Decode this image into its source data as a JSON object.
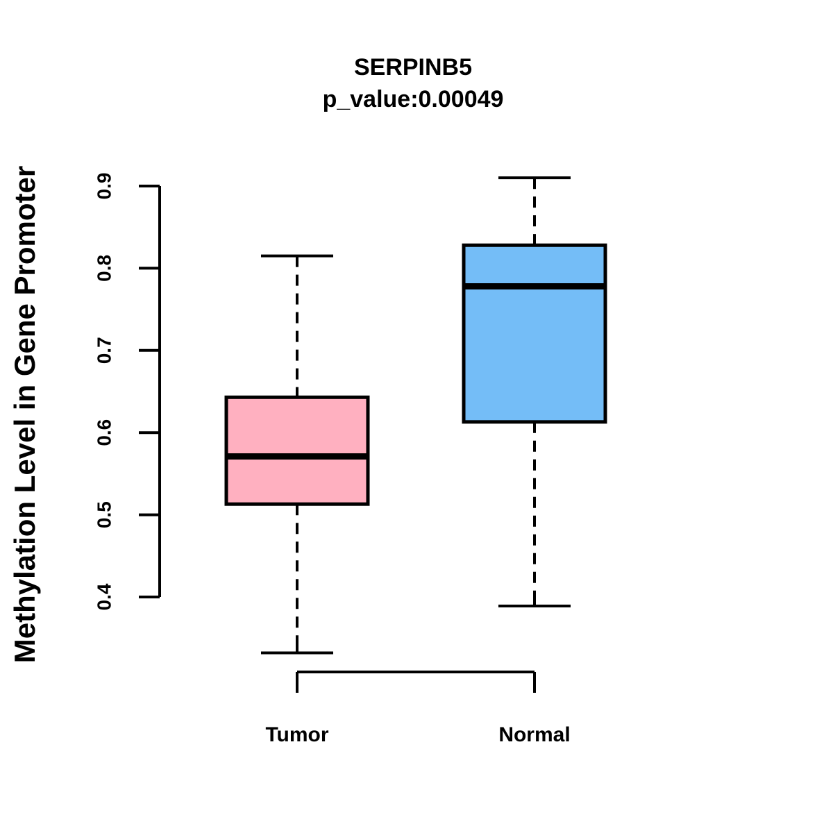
{
  "figure": {
    "background": "#FFFFFF",
    "axis_color": "#000000"
  },
  "chart_data": {
    "type": "boxplot",
    "title": "SERPINB5",
    "subtitle": "p_value:0.00049",
    "ylabel": "Methylation Level in Gene Promoter",
    "xlabel": "",
    "categories": [
      "Tumor",
      "Normal"
    ],
    "y_ticks": [
      0.4,
      0.5,
      0.6,
      0.7,
      0.8,
      0.9
    ],
    "y_tick_labels": [
      "0.4",
      "0.5",
      "0.6",
      "0.7",
      "0.8",
      "0.9"
    ],
    "ylim": [
      0.33,
      0.91
    ],
    "grid": false,
    "legend_position": "none",
    "box_border_color": "#000000",
    "median_color": "#000000",
    "whisker_style": "dashed",
    "series": [
      {
        "name": "Tumor",
        "color": "#FFB0C0",
        "whisker_low": 0.332,
        "q1": 0.513,
        "median": 0.571,
        "q3": 0.643,
        "whisker_high": 0.815
      },
      {
        "name": "Normal",
        "color": "#74BDF7",
        "whisker_low": 0.389,
        "q1": 0.613,
        "median": 0.778,
        "q3": 0.828,
        "whisker_high": 0.91
      }
    ]
  }
}
